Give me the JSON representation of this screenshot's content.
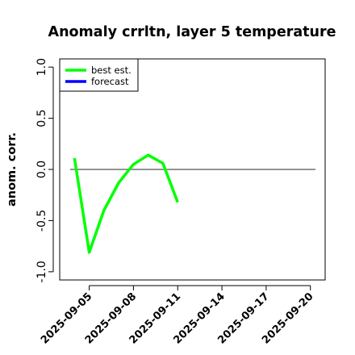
{
  "chart_data": {
    "type": "line",
    "title": "Anomaly crrltn, layer 5 temperature",
    "ylabel": "anom. corr.",
    "xlabel": "",
    "ylim": [
      -1.08,
      1.08
    ],
    "xlim": [
      "2025-09-03",
      "2025-09-21"
    ],
    "y_ticks": [
      "-1.0",
      "-0.5",
      "0.0",
      "0.5",
      "1.0"
    ],
    "x_ticks": [
      "2025-09-05",
      "2025-09-08",
      "2025-09-11",
      "2025-09-14",
      "2025-09-17",
      "2025-09-20"
    ],
    "highlight_tick": "2025-09-11",
    "highlight_color": "#228B22",
    "reference_line": 0.0,
    "grid": false,
    "legend_position": "top-left",
    "series": [
      {
        "name": "best est.",
        "color": "#00ff00",
        "x": [
          "2025-09-04",
          "2025-09-05",
          "2025-09-06",
          "2025-09-07",
          "2025-09-08",
          "2025-09-09",
          "2025-09-10",
          "2025-09-11"
        ],
        "y": [
          0.11,
          -0.81,
          -0.4,
          -0.13,
          0.05,
          0.14,
          0.06,
          -0.32
        ]
      },
      {
        "name": "forecast",
        "color": "#0000ff",
        "x": [],
        "y": []
      }
    ]
  }
}
